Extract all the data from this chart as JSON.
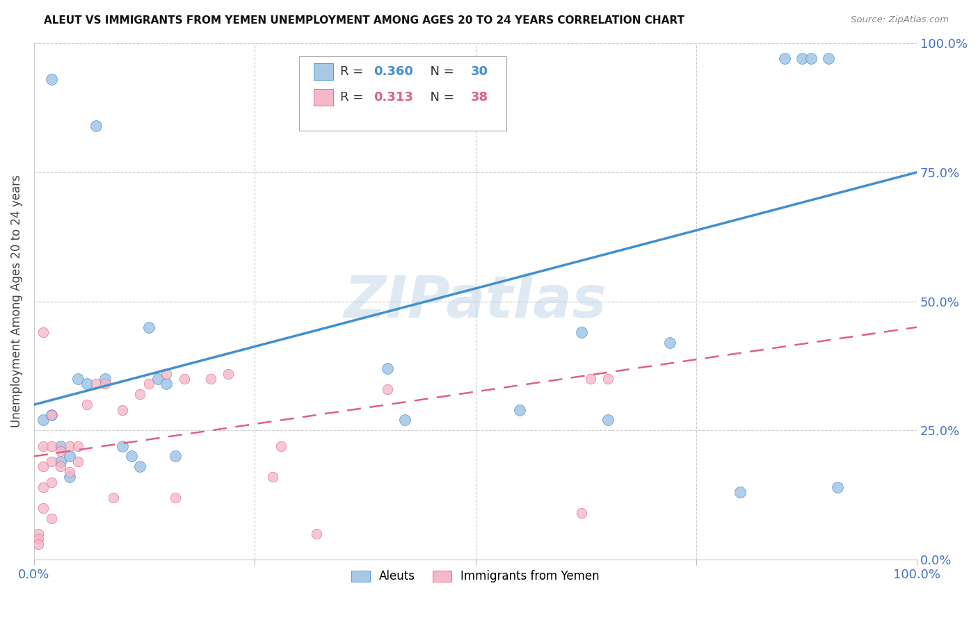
{
  "title": "ALEUT VS IMMIGRANTS FROM YEMEN UNEMPLOYMENT AMONG AGES 20 TO 24 YEARS CORRELATION CHART",
  "source": "Source: ZipAtlas.com",
  "ylabel": "Unemployment Among Ages 20 to 24 years",
  "yticks": [
    "0.0%",
    "25.0%",
    "50.0%",
    "75.0%",
    "100.0%"
  ],
  "ytick_vals": [
    0,
    0.25,
    0.5,
    0.75,
    1.0
  ],
  "legend_label1": "Aleuts",
  "legend_label2": "Immigrants from Yemen",
  "R1": "0.360",
  "N1": "30",
  "R2": "0.313",
  "N2": "38",
  "color_blue": "#a8c8e8",
  "color_pink": "#f4b8c8",
  "color_blue_line": "#4090d0",
  "color_pink_line": "#e06080",
  "watermark": "ZIPatlas",
  "aleuts_x": [
    0.01,
    0.02,
    0.03,
    0.03,
    0.04,
    0.04,
    0.05,
    0.06,
    0.08,
    0.1,
    0.11,
    0.12,
    0.13,
    0.14,
    0.15,
    0.16,
    0.02,
    0.07,
    0.4,
    0.42,
    0.55,
    0.62,
    0.65,
    0.72,
    0.8,
    0.85,
    0.87,
    0.88,
    0.9,
    0.91
  ],
  "aleuts_y": [
    0.27,
    0.28,
    0.22,
    0.19,
    0.16,
    0.2,
    0.35,
    0.34,
    0.35,
    0.22,
    0.2,
    0.18,
    0.45,
    0.35,
    0.34,
    0.2,
    0.93,
    0.84,
    0.37,
    0.27,
    0.29,
    0.44,
    0.27,
    0.42,
    0.13,
    0.97,
    0.97,
    0.97,
    0.97,
    0.14
  ],
  "yemen_x": [
    0.005,
    0.005,
    0.005,
    0.01,
    0.01,
    0.01,
    0.01,
    0.01,
    0.02,
    0.02,
    0.02,
    0.02,
    0.02,
    0.03,
    0.03,
    0.04,
    0.04,
    0.05,
    0.05,
    0.06,
    0.07,
    0.08,
    0.09,
    0.1,
    0.12,
    0.13,
    0.15,
    0.16,
    0.17,
    0.2,
    0.22,
    0.27,
    0.28,
    0.32,
    0.4,
    0.62,
    0.63,
    0.65
  ],
  "yemen_y": [
    0.05,
    0.04,
    0.03,
    0.44,
    0.22,
    0.18,
    0.14,
    0.1,
    0.28,
    0.22,
    0.19,
    0.15,
    0.08,
    0.21,
    0.18,
    0.22,
    0.17,
    0.22,
    0.19,
    0.3,
    0.34,
    0.34,
    0.12,
    0.29,
    0.32,
    0.34,
    0.36,
    0.12,
    0.35,
    0.35,
    0.36,
    0.16,
    0.22,
    0.05,
    0.33,
    0.09,
    0.35,
    0.35
  ]
}
